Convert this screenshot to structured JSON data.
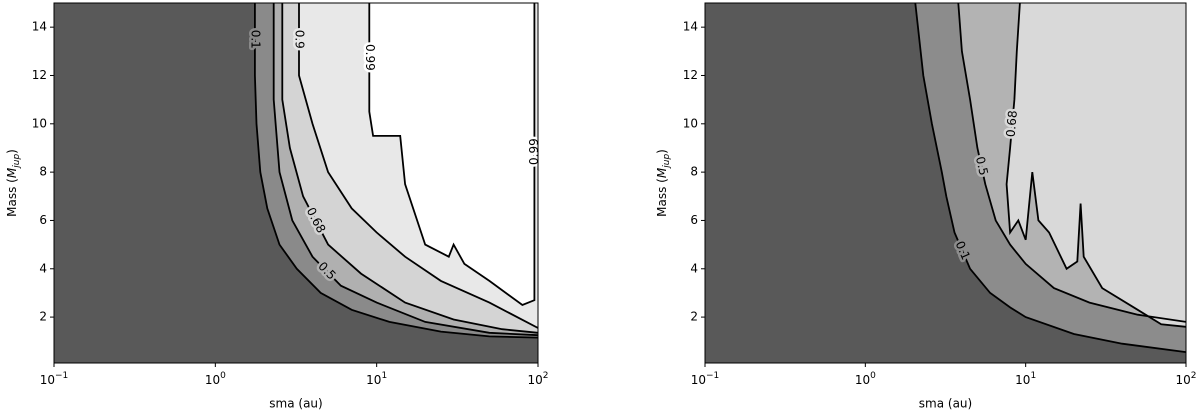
{
  "chart_data": [
    {
      "type": "contour",
      "xlabel": "sma (au)",
      "ylabel": {
        "prefix": "Mass (",
        "symbol": "M",
        "subscript": "jup",
        "suffix": ")"
      },
      "xscale": "log",
      "xlim": [
        0.1,
        100
      ],
      "xticks": [
        {
          "value": 0.1,
          "label": "10",
          "exponent": "−1"
        },
        {
          "value": 1,
          "label": "10",
          "exponent": "0"
        },
        {
          "value": 10,
          "label": "10",
          "exponent": "1"
        },
        {
          "value": 100,
          "label": "10",
          "exponent": "2"
        }
      ],
      "ylim": [
        0.1,
        15
      ],
      "yticks": [
        2,
        4,
        6,
        8,
        10,
        12,
        14
      ],
      "background": "#595959",
      "line_color": "#000000",
      "series": [
        {
          "name": "0.1",
          "color": "#8a8a8a",
          "x": [
            1.76,
            1.76,
            1.8,
            1.9,
            2.1,
            2.5,
            3.2,
            4.5,
            7,
            12,
            25,
            50,
            100
          ],
          "y": [
            15,
            12,
            10,
            8,
            6.5,
            5,
            4,
            3,
            2.3,
            1.8,
            1.4,
            1.2,
            1.15
          ]
        },
        {
          "name": "0.5",
          "color": "#b0b0b0",
          "x": [
            2.3,
            2.3,
            2.5,
            3,
            4,
            6,
            10,
            20,
            50,
            100
          ],
          "y": [
            15,
            11,
            8,
            6,
            4.5,
            3.3,
            2.6,
            1.8,
            1.35,
            1.25
          ]
        },
        {
          "name": "0.68",
          "color": "#d4d4d4",
          "x": [
            2.6,
            2.6,
            2.9,
            3.5,
            5,
            8,
            15,
            30,
            60,
            100
          ],
          "y": [
            15,
            11,
            9,
            7,
            5,
            3.8,
            2.6,
            1.9,
            1.5,
            1.35
          ]
        },
        {
          "name": "0.9",
          "color": "#e8e8e8",
          "x": [
            3.3,
            3.3,
            4,
            5,
            7,
            10,
            15,
            25,
            50,
            100
          ],
          "y": [
            15,
            12,
            10,
            8,
            6.5,
            5.5,
            4.5,
            3.5,
            2.6,
            1.55
          ]
        },
        {
          "name": "0.99",
          "color": "#ffffff",
          "x": [
            9,
            9,
            9.5,
            14,
            15,
            20,
            28,
            30,
            35,
            50,
            80,
            95,
            95
          ],
          "y": [
            15,
            10.5,
            9.5,
            9.5,
            7.5,
            5,
            4.5,
            5,
            4.2,
            3.5,
            2.5,
            2.7,
            15
          ]
        }
      ]
    },
    {
      "type": "contour",
      "xlabel": "sma (au)",
      "ylabel": {
        "prefix": "Mass (",
        "symbol": "M",
        "subscript": "jup",
        "suffix": ")"
      },
      "xscale": "log",
      "xlim": [
        0.1,
        100
      ],
      "xticks": [
        {
          "value": 0.1,
          "label": "10",
          "exponent": "−1"
        },
        {
          "value": 1,
          "label": "10",
          "exponent": "0"
        },
        {
          "value": 10,
          "label": "10",
          "exponent": "1"
        },
        {
          "value": 100,
          "label": "10",
          "exponent": "2"
        }
      ],
      "ylim": [
        0.1,
        15
      ],
      "yticks": [
        2,
        4,
        6,
        8,
        10,
        12,
        14
      ],
      "background": "#595959",
      "line_color": "#000000",
      "series": [
        {
          "name": "0.1",
          "color": "#8c8c8c",
          "x": [
            2.05,
            2.3,
            2.6,
            3,
            3.2,
            3.6,
            4.5,
            6,
            8,
            10,
            20,
            40,
            100
          ],
          "y": [
            15,
            12,
            10,
            8,
            7,
            5.5,
            4,
            3,
            2.4,
            2,
            1.3,
            0.9,
            0.55
          ]
        },
        {
          "name": "0.5",
          "color": "#b3b3b3",
          "x": [
            3.8,
            4,
            4.5,
            5,
            5.6,
            6.5,
            8,
            10,
            15,
            25,
            50,
            100
          ],
          "y": [
            15,
            13,
            11,
            9,
            7.5,
            6,
            5,
            4.2,
            3.2,
            2.6,
            2.1,
            1.8
          ]
        },
        {
          "name": "0.68",
          "color": "#d9d9d9",
          "x": [
            9.2,
            8.8,
            8.5,
            8,
            7.6,
            8,
            9,
            10,
            11,
            12,
            14,
            18,
            21,
            22,
            23,
            30,
            50,
            70,
            100
          ],
          "y": [
            15,
            13,
            11,
            9,
            7.5,
            5.5,
            6,
            5.2,
            8,
            6,
            5.5,
            4,
            4.3,
            6.7,
            4.5,
            3.2,
            2.3,
            1.7,
            1.6
          ]
        }
      ]
    }
  ]
}
